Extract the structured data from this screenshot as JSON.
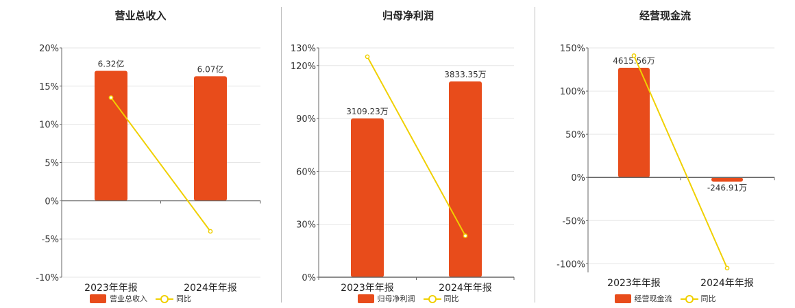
{
  "colors": {
    "bar": "#e84c1b",
    "line": "#f0d000",
    "axis": "#666666",
    "grid": "#e6e6e6",
    "text": "#333333"
  },
  "chart_data": [
    {
      "type": "bar",
      "title": "营业总收入",
      "categories": [
        "2023年年报",
        "2024年年报"
      ],
      "bar_series": {
        "name": "营业总收入",
        "values": [
          6.32,
          6.07
        ],
        "labels": [
          "6.32亿",
          "6.07亿"
        ],
        "unit": "亿"
      },
      "line_series": {
        "name": "同比",
        "values": [
          13.5,
          -4.0
        ],
        "unit": "%"
      },
      "y_ticks": [
        20,
        15,
        10,
        5,
        0,
        -5,
        -10
      ],
      "y_tick_labels": [
        "20%",
        "15%",
        "10%",
        "5%",
        "0%",
        "-5%",
        "-10%"
      ],
      "ylim": [
        -10,
        20
      ],
      "bar_pct": [
        17.0,
        16.3
      ],
      "grid": true,
      "legend": "bottom"
    },
    {
      "type": "bar",
      "title": "归母净利润",
      "categories": [
        "2023年年报",
        "2024年年报"
      ],
      "bar_series": {
        "name": "归母净利润",
        "values": [
          3109.23,
          3833.35
        ],
        "labels": [
          "3109.23万",
          "3833.35万"
        ],
        "unit": "万"
      },
      "line_series": {
        "name": "同比",
        "values": [
          125,
          23.5
        ],
        "unit": "%"
      },
      "y_ticks": [
        130,
        120,
        90,
        60,
        30,
        0
      ],
      "y_tick_labels": [
        "130%",
        "120%",
        "90%",
        "60%",
        "30%",
        "0%"
      ],
      "ylim": [
        0,
        130
      ],
      "bar_pct": [
        90,
        111
      ],
      "grid": true,
      "legend": "bottom"
    },
    {
      "type": "bar",
      "title": "经营现金流",
      "categories": [
        "2023年年报",
        "2024年年报"
      ],
      "bar_series": {
        "name": "经营现金流",
        "values": [
          4615.56,
          -246.91
        ],
        "labels": [
          "4615.56万",
          "-246.91万"
        ],
        "unit": "万"
      },
      "line_series": {
        "name": "同比",
        "values": [
          141,
          -105
        ],
        "unit": "%"
      },
      "y_ticks": [
        150,
        100,
        50,
        0,
        -50,
        -100
      ],
      "y_tick_labels": [
        "150%",
        "100%",
        "50%",
        "0%",
        "-50%",
        "-100%"
      ],
      "ylim": [
        -110,
        150
      ],
      "bar_pct": [
        127,
        -5
      ],
      "grid": true,
      "legend": "bottom"
    }
  ]
}
